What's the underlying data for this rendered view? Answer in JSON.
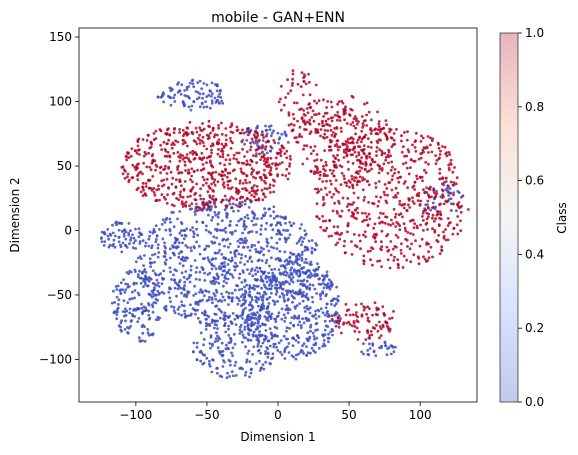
{
  "chart_data": {
    "type": "scatter",
    "title": "mobile - GAN+ENN",
    "xlabel": "Dimension 1",
    "ylabel": "Dimension 2",
    "xlim": [
      -140,
      140
    ],
    "ylim": [
      -133,
      157
    ],
    "xticks": [
      -100,
      -50,
      0,
      50,
      100
    ],
    "xtick_labels": [
      "−100",
      "−50",
      "0",
      "50",
      "100"
    ],
    "yticks": [
      -100,
      -50,
      0,
      50,
      100,
      150
    ],
    "ytick_labels": [
      "−100",
      "−50",
      "0",
      "50",
      "100",
      "150"
    ],
    "colormap": "coolwarm",
    "colors": {
      "class_0": "#3b4cc0",
      "class_1": "#b40426"
    },
    "point_alpha": 0.3,
    "grid": false,
    "colorbar": {
      "label": "Class",
      "range": [
        0,
        1
      ],
      "ticks": [
        0.0,
        0.2,
        0.4,
        0.6,
        0.8,
        1.0
      ],
      "tick_labels": [
        "0.0",
        "0.2",
        "0.4",
        "0.6",
        "0.8",
        "1.0"
      ]
    },
    "series": [
      {
        "class": 0,
        "color": "#3b4cc0",
        "clusters": [
          {
            "center": [
              -35,
              -25
            ],
            "radius": [
              65,
              50
            ],
            "count": 900
          },
          {
            "center": [
              10,
              -60
            ],
            "radius": [
              35,
              40
            ],
            "count": 420
          },
          {
            "center": [
              -100,
              -60
            ],
            "radius": [
              18,
              30
            ],
            "count": 160
          },
          {
            "center": [
              -110,
              -5
            ],
            "radius": [
              15,
              12
            ],
            "count": 70
          },
          {
            "center": [
              -30,
              -90
            ],
            "radius": [
              30,
              25
            ],
            "count": 200
          },
          {
            "center": [
              -60,
              105
            ],
            "radius": [
              25,
              12
            ],
            "count": 100
          },
          {
            "center": [
              -10,
              70
            ],
            "radius": [
              18,
              12
            ],
            "count": 60
          },
          {
            "center": [
              115,
              25
            ],
            "radius": [
              15,
              15
            ],
            "count": 40
          },
          {
            "center": [
              70,
              -90
            ],
            "radius": [
              15,
              8
            ],
            "count": 30
          }
        ]
      },
      {
        "class": 1,
        "color": "#b40426",
        "clusters": [
          {
            "center": [
              -50,
              50
            ],
            "radius": [
              60,
              35
            ],
            "count": 650
          },
          {
            "center": [
              80,
              25
            ],
            "radius": [
              55,
              55
            ],
            "count": 620
          },
          {
            "center": [
              45,
              70
            ],
            "radius": [
              35,
              35
            ],
            "count": 260
          },
          {
            "center": [
              60,
              -70
            ],
            "radius": [
              25,
              15
            ],
            "count": 90
          },
          {
            "center": [
              15,
              100
            ],
            "radius": [
              15,
              25
            ],
            "count": 60
          }
        ]
      }
    ]
  }
}
